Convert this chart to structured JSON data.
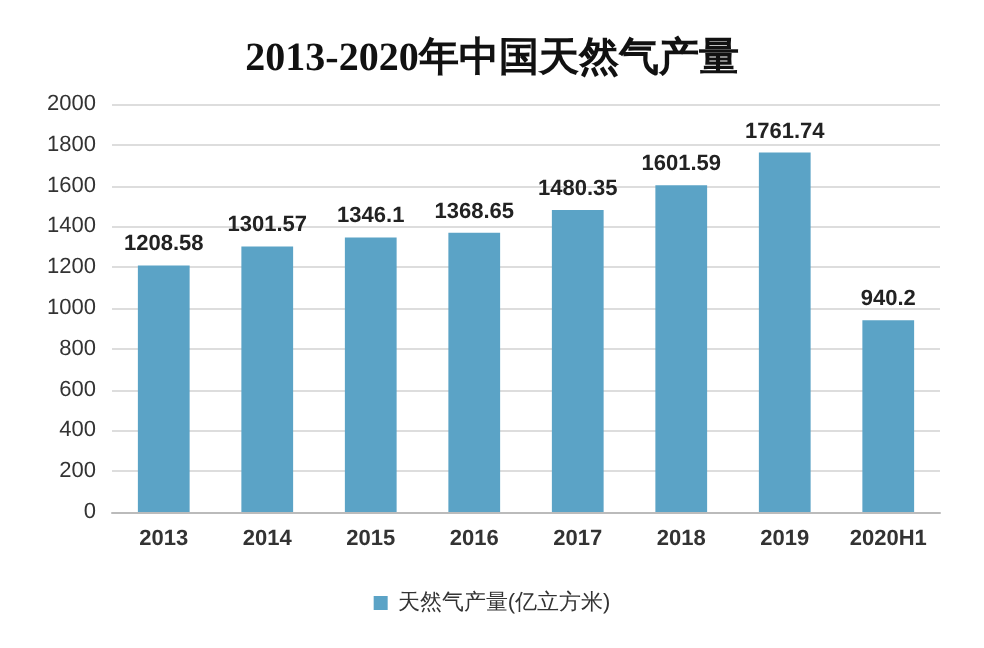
{
  "chart_data": {
    "type": "bar",
    "title": "2013-2020年中国天然气产量",
    "categories": [
      "2013",
      "2014",
      "2015",
      "2016",
      "2017",
      "2018",
      "2019",
      "2020H1"
    ],
    "series": [
      {
        "name": "天然气产量(亿立方米)",
        "color": "#5ba3c6",
        "values": [
          1208.58,
          1301.57,
          1346.1,
          1368.65,
          1480.35,
          1601.59,
          1761.74,
          940.2
        ]
      }
    ],
    "ylim": [
      0,
      2000
    ],
    "yticks": [
      0,
      200,
      400,
      600,
      800,
      1000,
      1200,
      1400,
      1600,
      1800,
      2000
    ],
    "grid": "y",
    "legend": "bottom",
    "data_labels": true
  }
}
